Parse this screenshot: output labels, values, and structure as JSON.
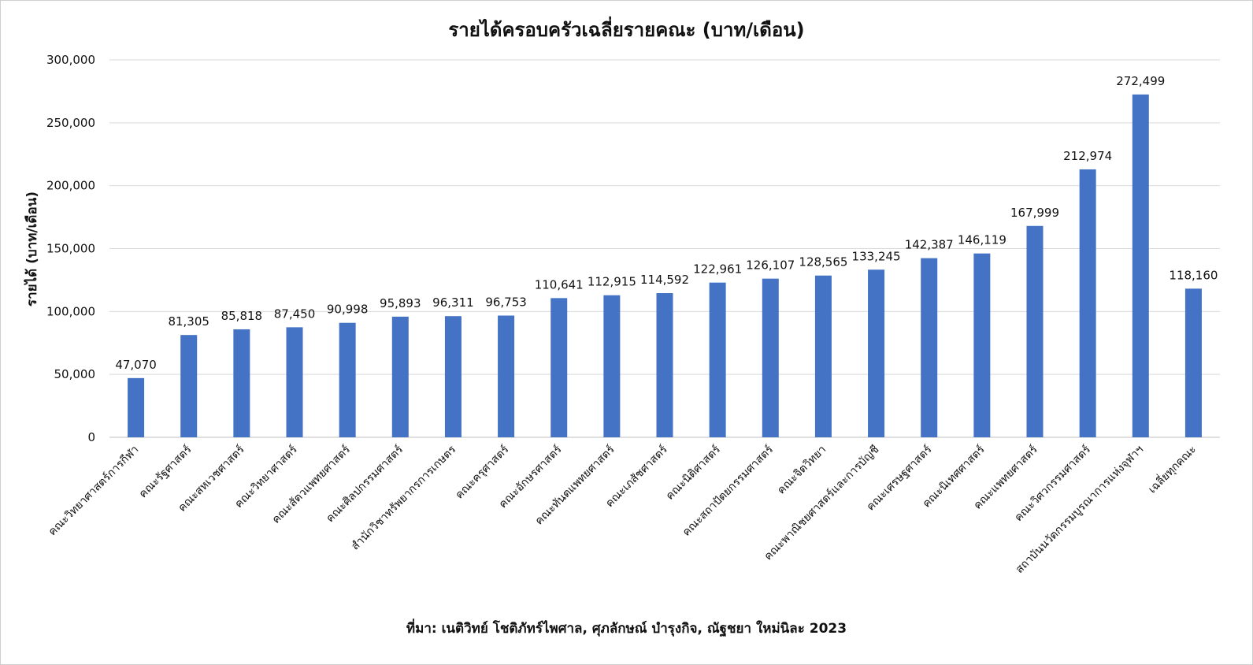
{
  "chart_data": {
    "type": "bar",
    "title": "รายได้ครอบครัวเฉลี่ยรายคณะ (บาท/เดือน)",
    "ylabel": "รายได้ (บาท/เดือน)",
    "xlabel": "",
    "ylim": [
      0,
      300000
    ],
    "yticks": [
      0,
      50000,
      100000,
      150000,
      200000,
      250000,
      300000
    ],
    "ytick_labels": [
      "0",
      "50,000",
      "100,000",
      "150,000",
      "200,000",
      "250,000",
      "300,000"
    ],
    "grid": true,
    "legend": "none",
    "bar_color": "#4472C4",
    "categories": [
      "คณะวิทยาศาสตร์การกีฬา",
      "คณะรัฐศาสตร์",
      "คณะสหเวชศาสตร์",
      "คณะวิทยาศาสตร์",
      "คณะสัตวแพทยศาสตร์",
      "คณะศิลปกรรมศาสตร์",
      "สำนักวิชาทรัพยากรการเกษตร",
      "คณะครุศาสตร์",
      "คณะอักษรศาสตร์",
      "คณะทันตแพทยศาสตร์",
      "คณะเภสัชศาสตร์",
      "คณะนิติศาสตร์",
      "คณะสถาปัตยกรรมศาสตร์",
      "คณะจิตวิทยา",
      "คณะพาณิชยศาสตร์และการบัญชี",
      "คณะเศรษฐศาสตร์",
      "คณะนิเทศศาสตร์",
      "คณะแพทยศาสตร์",
      "คณะวิศวกรรมศาสตร์",
      "สถาบันนวัตกรรมบูรณาการแห่งจุฬาฯ",
      "เฉลี่ยทุกคณะ"
    ],
    "values": [
      47070,
      81305,
      85818,
      87450,
      90998,
      95893,
      96311,
      96753,
      110641,
      112915,
      114592,
      122961,
      126107,
      128565,
      133245,
      142387,
      146119,
      167999,
      212974,
      272499,
      118160
    ],
    "data_labels": [
      "47,070",
      "81,305",
      "85,818",
      "87,450",
      "90,998",
      "95,893",
      "96,311",
      "96,753",
      "110,641",
      "112,915",
      "114,592",
      "122,961",
      "126,107",
      "128,565",
      "133,245",
      "142,387",
      "146,119",
      "167,999",
      "212,974",
      "272,499",
      "118,160"
    ]
  },
  "source_text": "ที่มา: เนติวิทย์ โชติภัทร์ไพศาล, ศุภลักษณ์ บำรุงกิจ, ณัฐชยา ใหม่นิละ 2023"
}
